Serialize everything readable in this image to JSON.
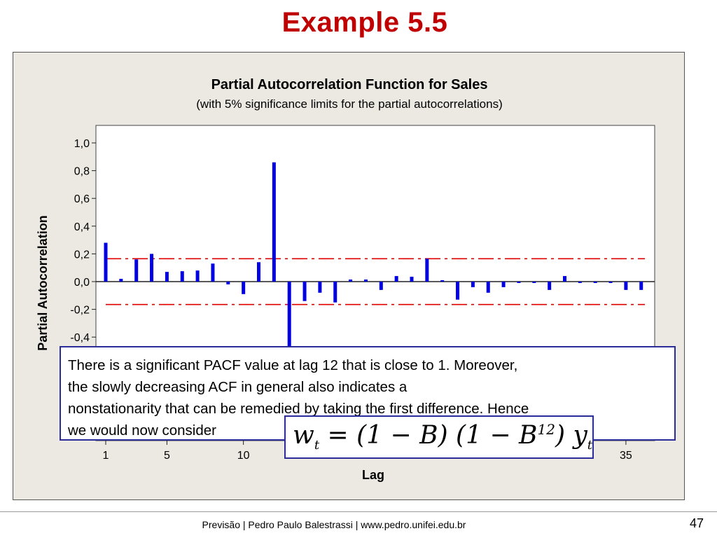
{
  "slide": {
    "title": "Example 5.5",
    "footer": "Previsão | Pedro Paulo Balestrassi | www.pedro.unifei.edu.br",
    "page_number": "47"
  },
  "callout": {
    "text": "There is a significant PACF value at lag  12 that is  close  to  1.  Moreover,\nthe  slowly  decreasing  ACF in  general  also  indicates  a\nnonstationarity that can be remedied by taking the  first difference. Hence\nwe  would now consider",
    "formula": "w_t = (1 − B)(1 − B^12) y_t"
  },
  "colors": {
    "bar": "#0000e0",
    "limit": "#e00000",
    "title": "#c00000",
    "box_border": "#2b2b9a"
  },
  "chart_data": {
    "type": "bar",
    "title": "Partial Autocorrelation Function for Sales",
    "subtitle": "(with 5% significance limits for the partial autocorrelations)",
    "xlabel": "Lag",
    "ylabel": "Partial Autocorrelation",
    "x_ticks": [
      1,
      5,
      10,
      35
    ],
    "y_ticks": [
      "1,0",
      "0,8",
      "0,6",
      "0,4",
      "0,2",
      "0,0",
      "-0,2",
      "-0,4"
    ],
    "ylim": [
      -1.0,
      1.0
    ],
    "xlim": [
      0.5,
      36.5
    ],
    "significance_limits": [
      0.165,
      -0.165
    ],
    "lags": [
      1,
      2,
      3,
      4,
      5,
      6,
      7,
      8,
      9,
      10,
      11,
      12,
      13,
      14,
      15,
      16,
      17,
      18,
      19,
      20,
      21,
      22,
      23,
      24,
      25,
      26,
      27,
      28,
      29,
      30,
      31,
      32,
      33,
      34,
      35,
      36
    ],
    "values": [
      0.28,
      0.02,
      0.16,
      0.2,
      0.07,
      0.075,
      0.08,
      0.13,
      -0.02,
      -0.09,
      0.14,
      0.86,
      -0.55,
      -0.14,
      -0.08,
      -0.15,
      0.015,
      0.015,
      -0.06,
      0.04,
      0.035,
      0.165,
      0.01,
      -0.13,
      -0.04,
      -0.08,
      -0.04,
      -0.01,
      -0.01,
      -0.06,
      0.04,
      -0.01,
      -0.01,
      -0.01,
      -0.06,
      -0.06
    ]
  }
}
